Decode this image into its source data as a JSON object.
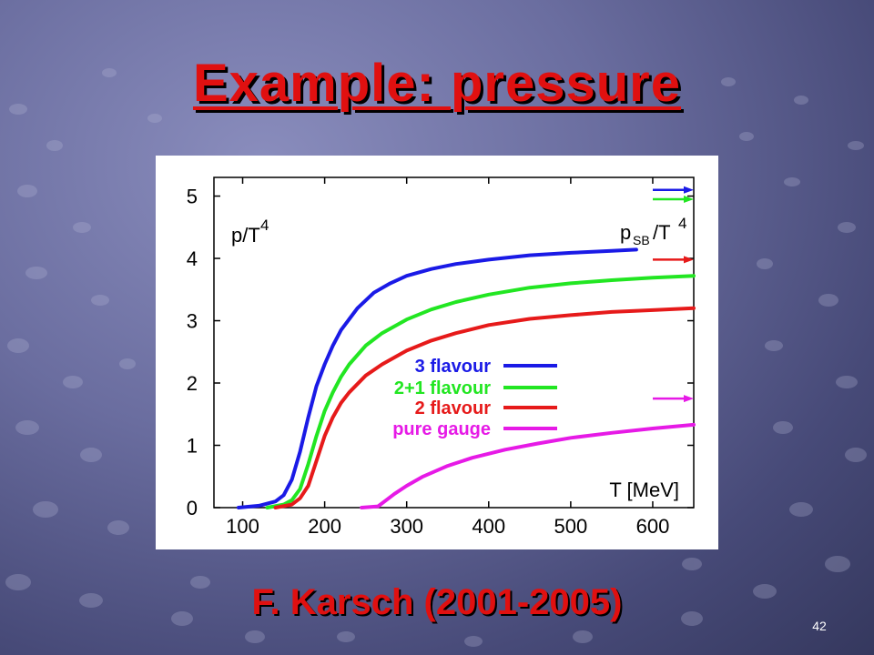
{
  "slide": {
    "title": "Example: pressure",
    "credit": "F. Karsch (2001-2005)",
    "page_number": "42"
  },
  "colors": {
    "background": "#5b5e8e",
    "title": "#e01010",
    "blue": "#1a1ae6",
    "green": "#22e622",
    "red": "#e61a1a",
    "magenta": "#e61ae6"
  },
  "chart_data": {
    "type": "line",
    "ylabel": "p/T",
    "ylabel_sup": "4",
    "sb_label": "p",
    "sb_label_sub": "SB",
    "sb_label_tail": "/T",
    "sb_label_sup": "4",
    "xlabel": "T [MeV]",
    "xlim": [
      65,
      650
    ],
    "ylim": [
      0,
      5.3
    ],
    "xticks": [
      "100",
      "200",
      "300",
      "400",
      "500",
      "600"
    ],
    "yticks": [
      "0",
      "1",
      "2",
      "3",
      "4",
      "5"
    ],
    "legend_position": "center-right",
    "series": [
      {
        "name": "3 flavour",
        "color": "#1a1ae6",
        "x": [
          95,
          120,
          140,
          150,
          160,
          170,
          180,
          190,
          200,
          210,
          220,
          240,
          260,
          280,
          300,
          330,
          360,
          400,
          450,
          500,
          550,
          580
        ],
        "y": [
          0,
          0.03,
          0.1,
          0.2,
          0.45,
          0.9,
          1.45,
          1.95,
          2.3,
          2.6,
          2.85,
          3.2,
          3.45,
          3.6,
          3.72,
          3.83,
          3.91,
          3.98,
          4.05,
          4.09,
          4.12,
          4.14
        ],
        "sb_limit": 5.1
      },
      {
        "name": "2+1 flavour",
        "color": "#22e622",
        "x": [
          130,
          150,
          160,
          170,
          180,
          190,
          200,
          210,
          220,
          230,
          250,
          270,
          300,
          330,
          360,
          400,
          450,
          500,
          550,
          600,
          650
        ],
        "y": [
          0,
          0.05,
          0.12,
          0.3,
          0.7,
          1.15,
          1.55,
          1.85,
          2.1,
          2.3,
          2.6,
          2.8,
          3.02,
          3.18,
          3.3,
          3.42,
          3.53,
          3.6,
          3.65,
          3.69,
          3.72
        ],
        "sb_limit": 4.95
      },
      {
        "name": "2 flavour",
        "color": "#e61a1a",
        "x": [
          140,
          160,
          170,
          180,
          190,
          200,
          210,
          220,
          230,
          250,
          270,
          300,
          330,
          360,
          400,
          450,
          500,
          550,
          600,
          650
        ],
        "y": [
          0,
          0.05,
          0.15,
          0.35,
          0.75,
          1.15,
          1.45,
          1.68,
          1.85,
          2.12,
          2.3,
          2.52,
          2.68,
          2.8,
          2.93,
          3.03,
          3.09,
          3.14,
          3.17,
          3.2
        ],
        "sb_limit": 3.98
      },
      {
        "name": "pure gauge",
        "color": "#e61ae6",
        "x": [
          245,
          265,
          275,
          285,
          300,
          320,
          350,
          380,
          420,
          460,
          500,
          550,
          600,
          650
        ],
        "y": [
          0,
          0.02,
          0.12,
          0.22,
          0.35,
          0.5,
          0.67,
          0.8,
          0.93,
          1.03,
          1.12,
          1.2,
          1.27,
          1.33
        ],
        "sb_limit": 1.75
      }
    ]
  }
}
